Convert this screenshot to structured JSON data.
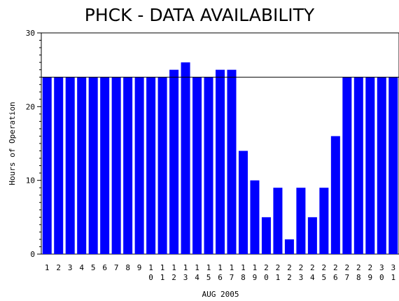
{
  "chart_data": {
    "type": "bar",
    "title": "PHCK - DATA AVAILABILITY",
    "xlabel": "AUG 2005",
    "ylabel": "Hours of Operation",
    "ylim": [
      0,
      30
    ],
    "yticks": [
      0,
      10,
      20,
      30
    ],
    "reference_line": 24,
    "bar_color": "#0000ff",
    "categories": [
      "1",
      "2",
      "3",
      "4",
      "5",
      "6",
      "7",
      "8",
      "9",
      "10",
      "11",
      "12",
      "13",
      "14",
      "15",
      "16",
      "17",
      "18",
      "19",
      "20",
      "21",
      "22",
      "23",
      "24",
      "25",
      "26",
      "27",
      "28",
      "29",
      "30",
      "31"
    ],
    "values": [
      24,
      24,
      24,
      24,
      24,
      24,
      24,
      24,
      24,
      24,
      24,
      25,
      26,
      24,
      24,
      25,
      25,
      14,
      10,
      5,
      9,
      2,
      9,
      5,
      9,
      16,
      24,
      24,
      24,
      24,
      24
    ]
  }
}
